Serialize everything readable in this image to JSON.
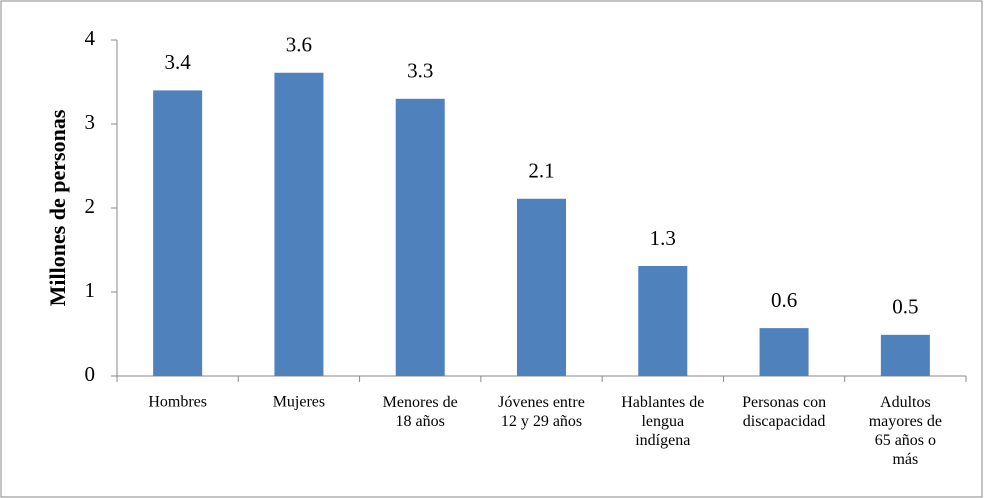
{
  "chart_data": {
    "type": "bar",
    "y_label": "Millones  de personas",
    "categories": [
      "Hombres",
      "Mujeres",
      "Menores de\n18 años",
      "Jóvenes entre\n12 y 29 años",
      "Hablantes de\nlengua\nindígena",
      "Personas con\ndiscapacidad",
      "Adultos\nmayores de\n65 años o\nmás"
    ],
    "values": [
      3.4,
      3.61,
      3.3,
      2.11,
      1.31,
      0.57,
      0.49
    ],
    "value_labels": [
      "3.4",
      "3.6",
      "3.3",
      "2.1",
      "1.3",
      "0.6",
      "0.5"
    ],
    "color": "#4f81bd",
    "ylim": [
      0,
      4
    ],
    "yticks": [
      0,
      1,
      2,
      3,
      4
    ],
    "grid": false
  }
}
